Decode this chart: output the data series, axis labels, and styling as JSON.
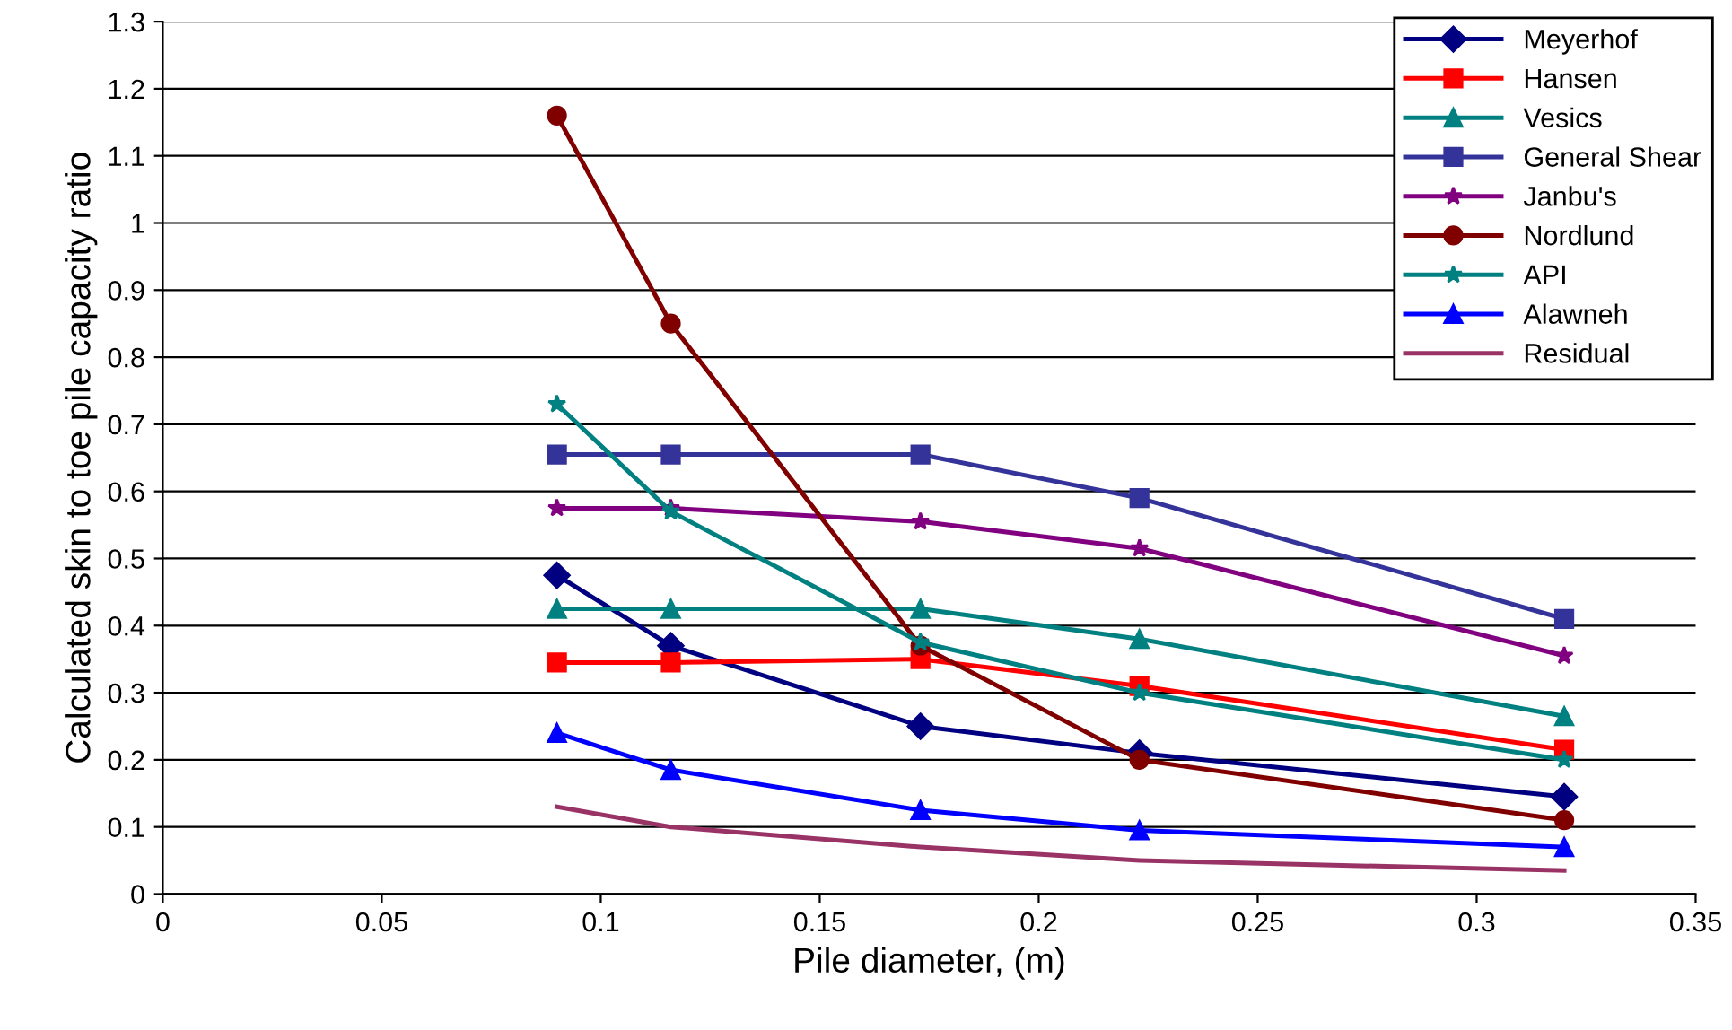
{
  "chart_data": {
    "type": "line",
    "xlabel": "Pile diameter, (m)",
    "ylabel": "Calculated skin to toe pile capacity ratio",
    "x": [
      0.09,
      0.116,
      0.173,
      0.223,
      0.32
    ],
    "series": [
      {
        "name": "Meyerhof",
        "color": "#000080",
        "marker": "diamond",
        "values": [
          0.475,
          0.37,
          0.25,
          0.21,
          0.145
        ]
      },
      {
        "name": "Hansen",
        "color": "#ff0000",
        "marker": "square",
        "values": [
          0.345,
          0.345,
          0.35,
          0.31,
          0.215
        ]
      },
      {
        "name": "Vesics",
        "color": "#008080",
        "marker": "triangle",
        "values": [
          0.425,
          0.425,
          0.425,
          0.38,
          0.265
        ]
      },
      {
        "name": "General Shear",
        "color": "#333399",
        "marker": "square",
        "values": [
          0.655,
          0.655,
          0.655,
          0.59,
          0.41
        ]
      },
      {
        "name": "Janbu's",
        "color": "#800080",
        "marker": "star",
        "values": [
          0.575,
          0.575,
          0.555,
          0.515,
          0.355
        ]
      },
      {
        "name": "Nordlund",
        "color": "#800000",
        "marker": "circle",
        "values": [
          1.16,
          0.85,
          0.37,
          0.2,
          0.11
        ]
      },
      {
        "name": "API",
        "color": "#008080",
        "marker": "star",
        "values": [
          0.73,
          0.57,
          0.375,
          0.3,
          0.2
        ]
      },
      {
        "name": "Alawneh",
        "color": "#0000ff",
        "marker": "triangle",
        "values": [
          0.24,
          0.185,
          0.125,
          0.095,
          0.07
        ]
      },
      {
        "name": "Residual",
        "color": "#993366",
        "marker": "none",
        "values": [
          0.13,
          0.1,
          0.07,
          0.05,
          0.035
        ]
      }
    ],
    "xlim": [
      0,
      0.35
    ],
    "xticks": [
      0,
      0.05,
      0.1,
      0.15,
      0.2,
      0.25,
      0.3,
      0.35
    ],
    "ylim": [
      0,
      1.3
    ],
    "yticks": [
      0,
      0.1,
      0.2,
      0.3,
      0.4,
      0.5,
      0.6,
      0.7,
      0.8,
      0.9,
      1,
      1.1,
      1.2,
      1.3
    ],
    "grid": "y",
    "legend": "top right"
  }
}
